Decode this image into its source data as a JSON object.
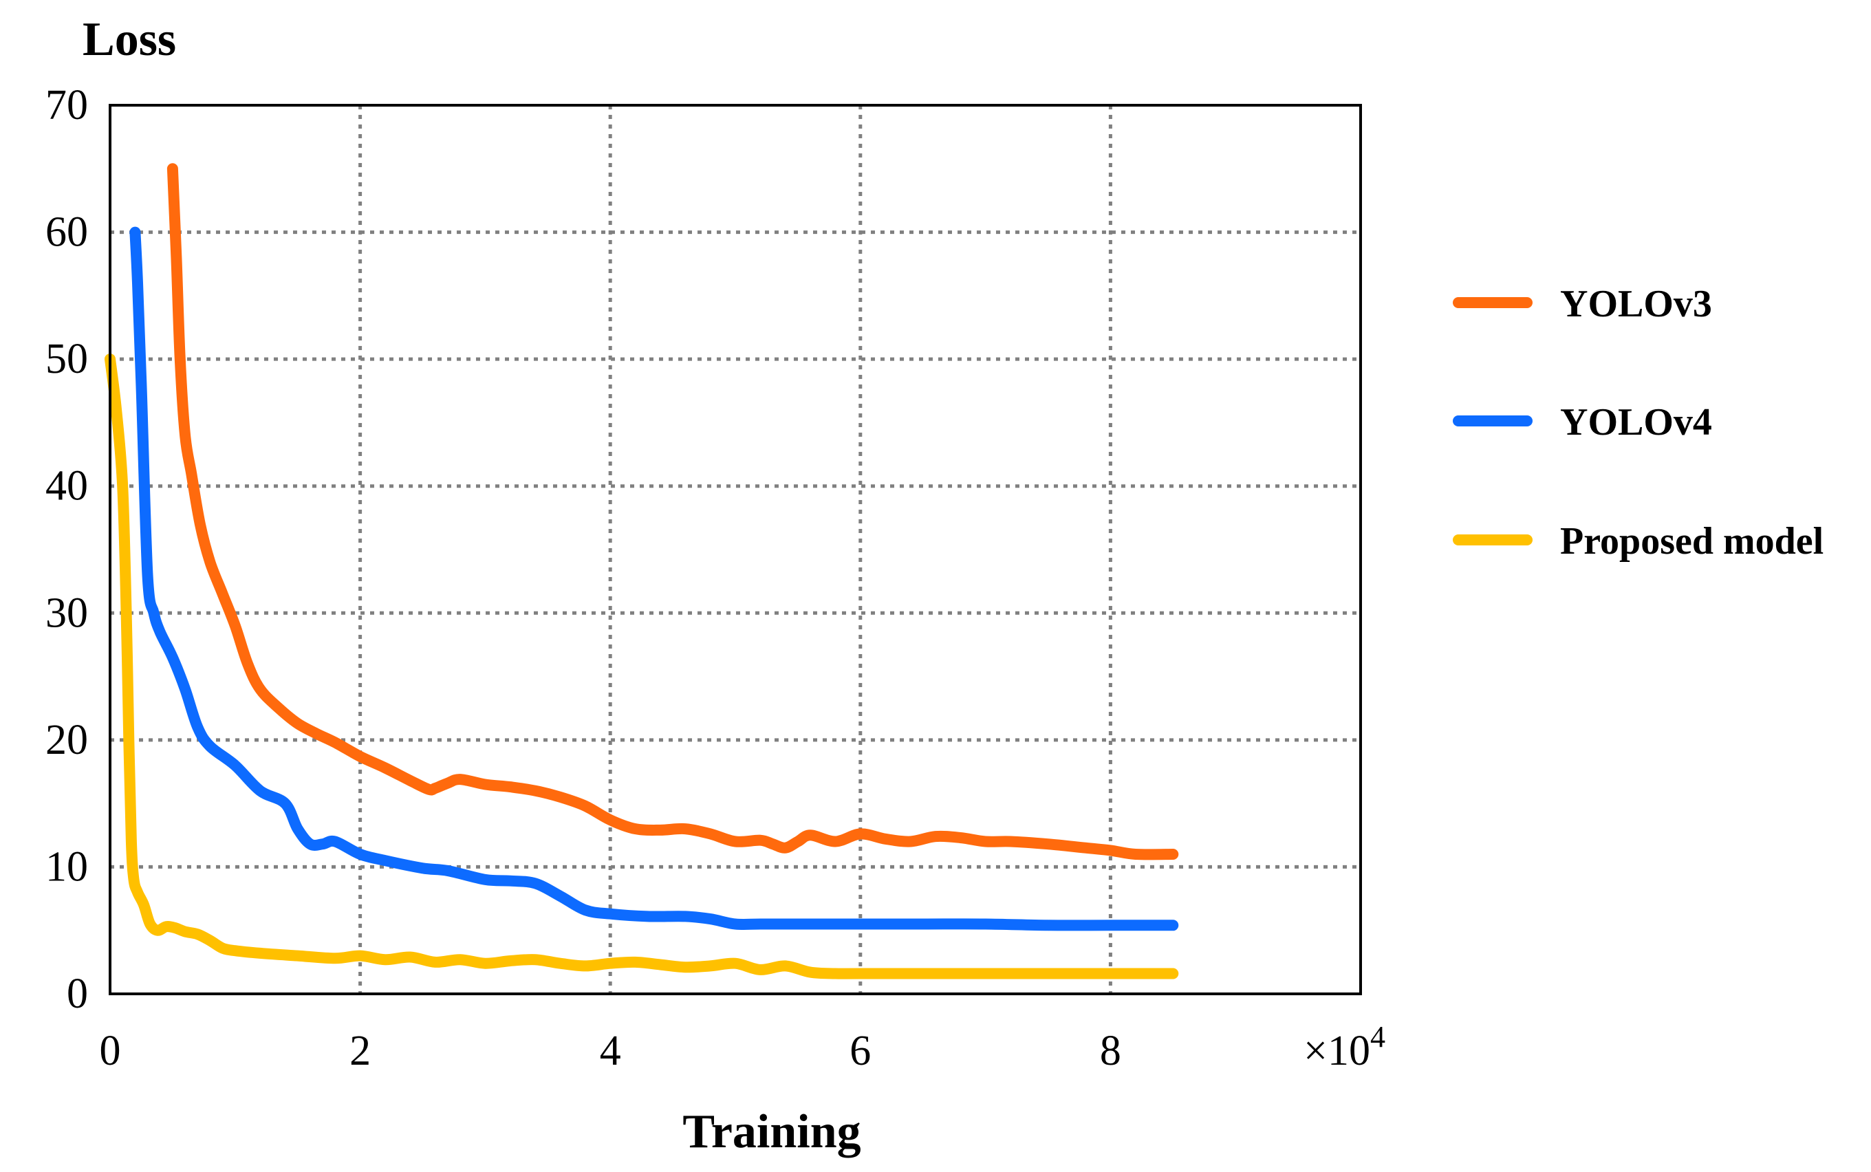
{
  "chart_data": {
    "type": "line",
    "ylabel": "Loss",
    "xlabel": "Training",
    "x_multiplier_base": "×10",
    "x_multiplier_exp": "4",
    "xlim": [
      0,
      10
    ],
    "ylim": [
      0,
      70
    ],
    "x_ticks": [
      0,
      2,
      4,
      6,
      8
    ],
    "y_ticks": [
      0,
      10,
      20,
      30,
      40,
      50,
      60,
      70
    ],
    "grid": true,
    "legend_position": "right",
    "series": [
      {
        "name": "YOLOv3",
        "color": "#FF6A0D",
        "x": [
          0.5,
          0.53,
          0.56,
          0.6,
          0.65,
          0.72,
          0.8,
          0.9,
          1.0,
          1.1,
          1.2,
          1.35,
          1.5,
          1.65,
          1.8,
          2.0,
          2.2,
          2.4,
          2.55,
          2.6,
          2.7,
          2.8,
          3.0,
          3.2,
          3.4,
          3.6,
          3.8,
          4.0,
          4.2,
          4.4,
          4.6,
          4.8,
          5.0,
          5.2,
          5.3,
          5.4,
          5.5,
          5.6,
          5.8,
          6.0,
          6.2,
          6.4,
          6.6,
          6.8,
          7.0,
          7.2,
          7.5,
          7.8,
          8.0,
          8.2,
          8.5
        ],
        "y": [
          65,
          58,
          50,
          44,
          41,
          37,
          34,
          31.5,
          29,
          26,
          24,
          22.5,
          21.3,
          20.5,
          19.8,
          18.7,
          17.8,
          16.8,
          16.1,
          16.2,
          16.6,
          16.9,
          16.5,
          16.3,
          16.0,
          15.5,
          14.8,
          13.7,
          13.0,
          12.9,
          13.0,
          12.6,
          12.0,
          12.1,
          11.8,
          11.5,
          12.0,
          12.5,
          12.0,
          12.6,
          12.2,
          12.0,
          12.4,
          12.3,
          12.0,
          12.0,
          11.8,
          11.5,
          11.3,
          11.0,
          11.0
        ]
      },
      {
        "name": "YOLOv4",
        "color": "#0D6BFF",
        "x": [
          0.2,
          0.22,
          0.25,
          0.3,
          0.35,
          0.4,
          0.5,
          0.6,
          0.7,
          0.8,
          1.0,
          1.2,
          1.4,
          1.5,
          1.6,
          1.7,
          1.8,
          2.0,
          2.2,
          2.5,
          2.7,
          3.0,
          3.2,
          3.4,
          3.6,
          3.8,
          4.0,
          4.3,
          4.6,
          4.8,
          5.0,
          5.2,
          5.5,
          6.0,
          6.5,
          7.0,
          7.5,
          8.0,
          8.5
        ],
        "y": [
          60,
          56,
          48,
          33,
          30,
          28.5,
          26.5,
          24,
          21,
          19.5,
          18,
          16,
          15,
          13,
          11.8,
          11.8,
          12,
          11,
          10.5,
          9.9,
          9.7,
          9.0,
          8.9,
          8.7,
          7.7,
          6.6,
          6.3,
          6.1,
          6.1,
          5.9,
          5.5,
          5.5,
          5.5,
          5.5,
          5.5,
          5.5,
          5.4,
          5.4,
          5.4
        ]
      },
      {
        "name": "Proposed model",
        "color": "#FFC000",
        "x": [
          0.0,
          0.05,
          0.1,
          0.13,
          0.15,
          0.17,
          0.19,
          0.22,
          0.27,
          0.32,
          0.38,
          0.45,
          0.52,
          0.6,
          0.7,
          0.8,
          0.9,
          1.0,
          1.2,
          1.5,
          1.8,
          2.0,
          2.2,
          2.4,
          2.6,
          2.8,
          3.0,
          3.2,
          3.4,
          3.6,
          3.8,
          4.0,
          4.2,
          4.4,
          4.6,
          4.8,
          5.0,
          5.2,
          5.4,
          5.6,
          5.8,
          6.0,
          7.0,
          8.0,
          8.5
        ],
        "y": [
          50,
          46,
          40,
          30,
          20,
          12,
          9,
          8,
          7,
          5.5,
          5,
          5.3,
          5.2,
          4.9,
          4.7,
          4.2,
          3.6,
          3.4,
          3.2,
          3.0,
          2.8,
          3.0,
          2.7,
          2.9,
          2.5,
          2.7,
          2.4,
          2.6,
          2.7,
          2.4,
          2.2,
          2.4,
          2.5,
          2.3,
          2.1,
          2.2,
          2.4,
          1.9,
          2.2,
          1.7,
          1.6,
          1.6,
          1.6,
          1.6,
          1.6
        ]
      }
    ]
  }
}
